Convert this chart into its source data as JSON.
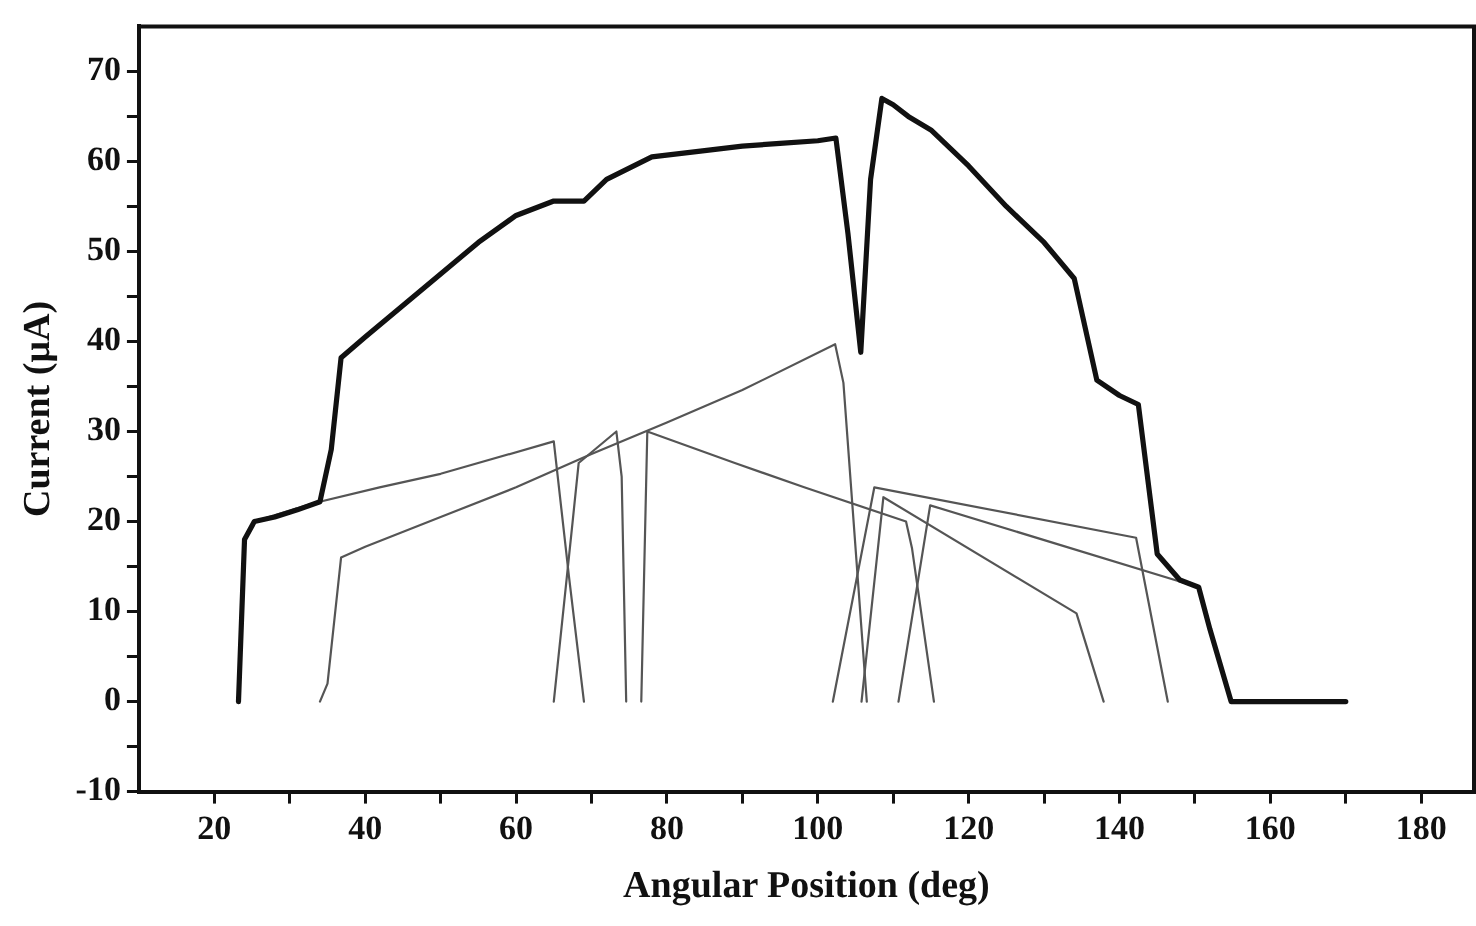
{
  "chart_data": {
    "type": "line",
    "xlabel": "Angular Position (deg)",
    "ylabel": "Current (μA)",
    "xlim": [
      10,
      187
    ],
    "ylim": [
      -10,
      75
    ],
    "xticks": [
      20,
      {
        "value": 30,
        "label": null
      },
      40,
      {
        "value": 50,
        "label": null
      },
      60,
      {
        "value": 70,
        "label": null
      },
      80,
      {
        "value": 90,
        "label": null
      },
      100,
      {
        "value": 110,
        "label": null
      },
      120,
      {
        "value": 130,
        "label": null
      },
      140,
      {
        "value": 150,
        "label": null
      },
      160,
      {
        "value": 170,
        "label": null
      },
      180
    ],
    "yticks": [
      -10,
      {
        "value": -5,
        "label": null
      },
      0,
      {
        "value": 5,
        "label": null
      },
      10,
      {
        "value": 15,
        "label": null
      },
      20,
      {
        "value": 25,
        "label": null
      },
      30,
      {
        "value": 35,
        "label": null
      },
      40,
      {
        "value": 45,
        "label": null
      },
      50,
      {
        "value": 55,
        "label": null
      },
      60,
      {
        "value": 65,
        "label": null
      },
      70
    ],
    "grid": false,
    "legend": false,
    "marker": "none",
    "line_style": "solid",
    "series": [
      {
        "color": "#111111",
        "x": [
          23.2,
          24,
          25.3,
          28,
          31,
          34,
          35.5,
          36.8,
          40,
          45,
          50,
          55,
          60,
          65,
          69,
          72,
          78,
          85,
          90,
          95,
          100,
          102.4,
          104,
          105.7,
          107,
          108.5,
          110,
          112,
          115,
          120,
          125,
          130,
          134,
          137,
          140,
          142.5,
          145,
          148,
          150.5,
          152,
          154.8,
          170
        ],
        "values": [
          0,
          18,
          20,
          20.5,
          21.3,
          22.2,
          28,
          38.2,
          40.5,
          44,
          47.5,
          51,
          54,
          55.6,
          55.6,
          58,
          60.5,
          61.2,
          61.7,
          62,
          62.3,
          62.6,
          52,
          38.8,
          58,
          67,
          66.3,
          65,
          63.5,
          59.5,
          55,
          51,
          47,
          35.7,
          34,
          33,
          16.4,
          13.5,
          12.7,
          8,
          0,
          0
        ]
      },
      {
        "color": "#555555",
        "x": [
          23.2,
          24,
          25.3,
          33,
          41.9,
          50,
          65,
          67,
          69
        ],
        "values": [
          0,
          18,
          20,
          22,
          23.8,
          25.3,
          28.9,
          14,
          0
        ]
      },
      {
        "color": "#555555",
        "x": [
          34,
          35,
          36.8,
          40,
          50,
          60,
          70,
          80,
          90,
          102.3,
          103.4,
          106.5
        ],
        "values": [
          0,
          2,
          16,
          17.2,
          20.5,
          23.8,
          27.5,
          31,
          34.6,
          39.7,
          35.4,
          0
        ]
      },
      {
        "color": "#555555",
        "x": [
          65,
          67.5,
          68.3,
          73.3,
          74,
          74.6
        ],
        "values": [
          0,
          20,
          26.5,
          30,
          25,
          0
        ]
      },
      {
        "color": "#555555",
        "x": [
          76.6,
          77.4,
          89,
          98.2,
          111.7,
          112.5,
          115.4
        ],
        "values": [
          0,
          30,
          26.5,
          23.8,
          20,
          17,
          0
        ]
      },
      {
        "color": "#555555",
        "x": [
          102,
          107.5,
          142.2,
          146.4
        ],
        "values": [
          0,
          23.8,
          18.2,
          0
        ]
      },
      {
        "color": "#555555",
        "x": [
          105.8,
          108.7,
          134.3,
          137.9
        ],
        "values": [
          0,
          22.7,
          9.8,
          0
        ]
      },
      {
        "color": "#555555",
        "x": [
          110.7,
          114.9,
          150.5,
          152,
          154.8
        ],
        "values": [
          0,
          21.8,
          12.7,
          8,
          0
        ]
      }
    ]
  }
}
